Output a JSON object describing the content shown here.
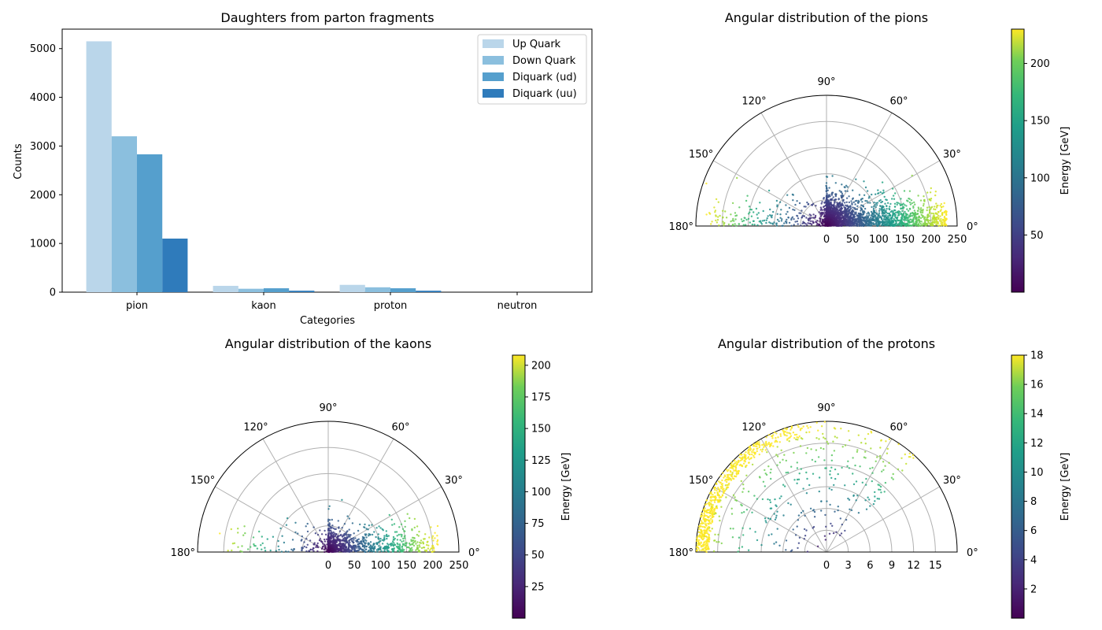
{
  "chart_data": [
    {
      "type": "bar",
      "title": "Daughters from parton fragments",
      "xlabel": "Categories",
      "ylabel": "Counts",
      "categories": [
        "pion",
        "kaon",
        "proton",
        "neutron"
      ],
      "ylim": [
        0,
        5400
      ],
      "yticks": [
        0,
        1000,
        2000,
        3000,
        4000,
        5000
      ],
      "legend_position": "upper right",
      "series": [
        {
          "name": "Up Quark",
          "color": "#bad6ea",
          "values": [
            5150,
            130,
            150,
            0
          ]
        },
        {
          "name": "Down Quark",
          "color": "#8bbfde",
          "values": [
            3200,
            70,
            100,
            0
          ]
        },
        {
          "name": "Diquark (ud)",
          "color": "#559fcd",
          "values": [
            2830,
            80,
            80,
            0
          ]
        },
        {
          "name": "Diquark (uu)",
          "color": "#2f7bbb",
          "values": [
            1100,
            30,
            30,
            0
          ]
        }
      ]
    },
    {
      "type": "scatter",
      "projection": "polar (half)",
      "title": "Angular distribution of the pions",
      "theta_ticks": [
        "0°",
        "30°",
        "60°",
        "90°",
        "120°",
        "150°",
        "180°"
      ],
      "r_ticks": [
        0,
        50,
        100,
        150,
        200,
        250
      ],
      "rlim": [
        0,
        250
      ],
      "colorbar": {
        "label": "Energy [GeV]",
        "range": [
          0,
          230
        ],
        "ticks": [
          50,
          100,
          150,
          200
        ],
        "cmap": "viridis"
      },
      "distribution": {
        "description_points": 2600,
        "r_max": 230,
        "energy_max": 230,
        "theta_spread_deg": 60,
        "forward_peaked": true
      }
    },
    {
      "type": "scatter",
      "projection": "polar (half)",
      "title": "Angular distribution of the kaons",
      "theta_ticks": [
        "0°",
        "30°",
        "60°",
        "90°",
        "120°",
        "150°",
        "180°"
      ],
      "r_ticks": [
        0,
        50,
        100,
        150,
        200,
        250
      ],
      "rlim": [
        0,
        250
      ],
      "colorbar": {
        "label": "Energy [GeV]",
        "range": [
          0,
          208
        ],
        "ticks": [
          25,
          50,
          75,
          100,
          125,
          150,
          175,
          200
        ],
        "cmap": "viridis"
      },
      "distribution": {
        "description_points": 1100,
        "r_max": 210,
        "energy_max": 208,
        "theta_spread_deg": 60,
        "forward_peaked": true
      }
    },
    {
      "type": "scatter",
      "projection": "polar (half)",
      "title": "Angular distribution of the protons",
      "theta_ticks": [
        "0°",
        "30°",
        "60°",
        "90°",
        "120°",
        "150°",
        "180°"
      ],
      "r_ticks": [
        0,
        3,
        6,
        9,
        12,
        15
      ],
      "rlim": [
        0,
        18
      ],
      "colorbar": {
        "label": "Energy [GeV]",
        "range": [
          0,
          18
        ],
        "ticks": [
          2,
          4,
          6,
          8,
          10,
          12,
          14,
          16,
          18
        ],
        "cmap": "viridis"
      },
      "distribution": {
        "description_points": 900,
        "r_max": 18,
        "energy_max": 18,
        "theta_spread_deg": 180,
        "forward_peaked": false
      }
    }
  ]
}
